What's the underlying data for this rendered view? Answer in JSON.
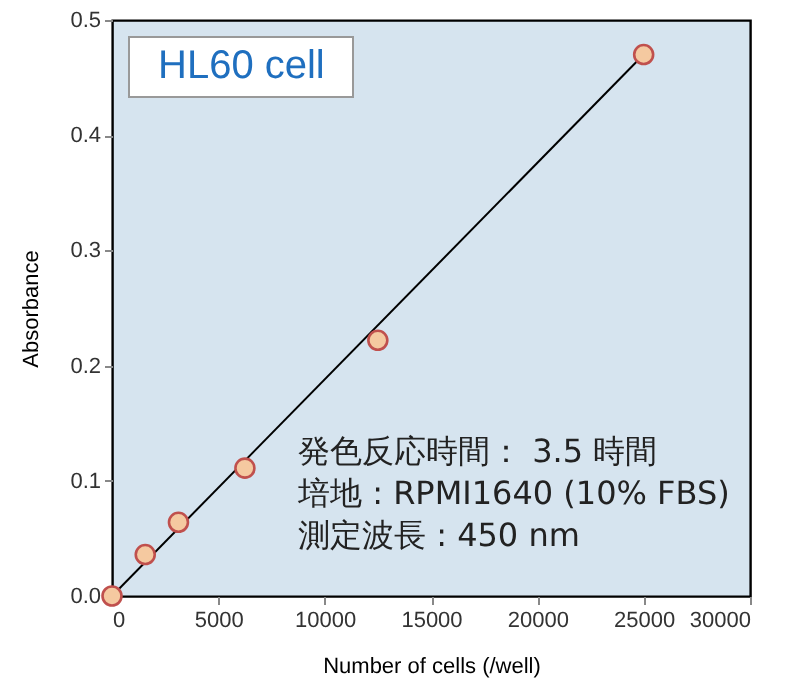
{
  "chart_data": {
    "type": "scatter",
    "title": "HL60 cell",
    "xlabel": "Number of cells (/well)",
    "ylabel": "Absorbance",
    "x": [
      0,
      1563,
      3125,
      6250,
      12500,
      25000
    ],
    "series": [
      {
        "color": "#f5c9a0",
        "values": [
          0,
          0.036,
          0.064,
          0.111,
          0.222,
          0.47
        ]
      },
      {
        "type": "line",
        "marker": "none",
        "color": "#000000",
        "x": [
          0,
          25000
        ],
        "values": [
          0,
          0.47
        ]
      }
    ],
    "xlim": [
      0,
      30000
    ],
    "xticks": [
      0,
      5000,
      10000,
      15000,
      20000,
      25000,
      30000
    ],
    "ylim": [
      0,
      0.5
    ],
    "yticks": [
      {
        "value": 0,
        "label": "0.0"
      },
      0.1,
      0.2,
      0.3,
      0.4,
      0.5
    ],
    "annotations": [
      "発色反応時間： 3.5 時間",
      "培地 : RPMI1640 (10% FBS)",
      "測定波長 : 450 nm"
    ],
    "grid": false,
    "marker": "circle"
  }
}
